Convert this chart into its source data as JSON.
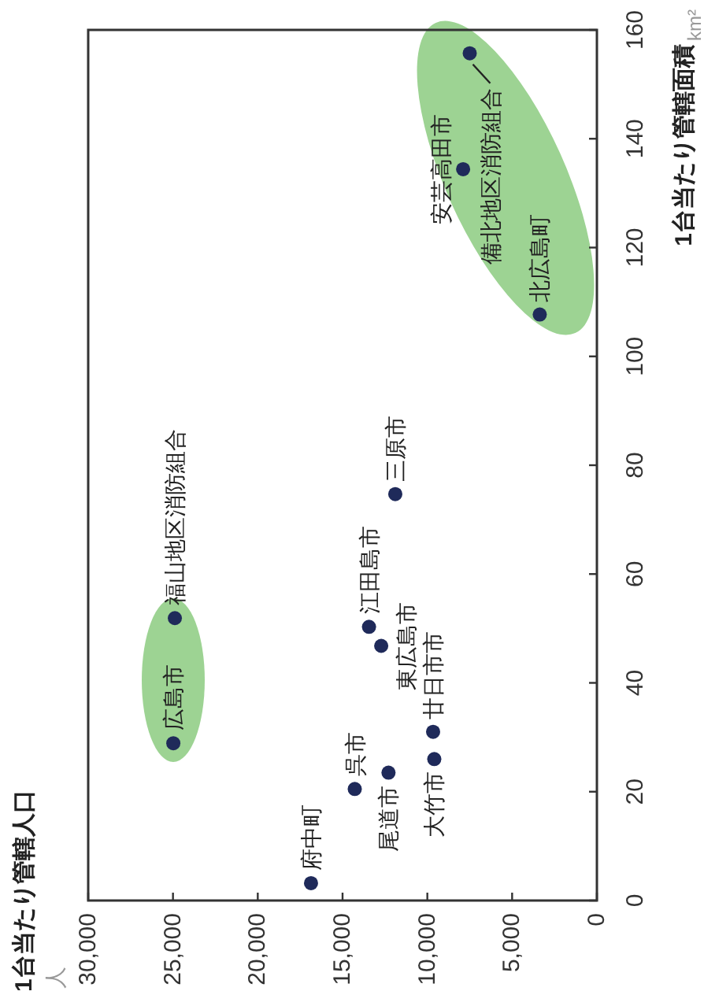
{
  "chart_data": {
    "type": "scatter",
    "ylabel": "1台当たり管轄面積",
    "ylim": [
      0,
      160
    ],
    "yticks": [
      0,
      20,
      40,
      60,
      80,
      100,
      120,
      140,
      160
    ],
    "xlim": [
      30000,
      0
    ],
    "xticks": [
      {
        "value": 30000,
        "label": "30,000"
      },
      {
        "value": 25000,
        "label": "25,000"
      },
      {
        "value": 20000,
        "label": "20,000"
      },
      {
        "value": 15000,
        "label": "15,000"
      },
      {
        "value": 10000,
        "label": "10,000"
      },
      {
        "value": 5000,
        "label": "5,000"
      },
      0
    ],
    "marker": "circle",
    "series": [
      {
        "color": "#1f2a5a",
        "x": [
          16860,
          14280,
          12290,
          9590,
          9660,
          24980,
          24890,
          12720,
          13440,
          11890,
          7890,
          7500,
          3370
        ],
        "values": [
          3.2,
          20.5,
          23.5,
          26.0,
          31.0,
          28.9,
          51.9,
          46.8,
          50.3,
          74.7,
          134.4,
          155.7,
          107.7
        ]
      }
    ],
    "annotations": [
      "km²",
      "1台当たり管轄人口",
      "人",
      {
        "text": "府中町",
        "x": 16860,
        "y": 3.2
      },
      {
        "text": "呉市",
        "x": 14280,
        "y": 20.5
      },
      {
        "text": "尾道市",
        "x": 12290,
        "y": 23.5
      },
      {
        "text": "大竹市",
        "x": 9590,
        "y": 26.0
      },
      {
        "text": "廿日市市",
        "x": 9660,
        "y": 31.0
      },
      {
        "text": "広島市",
        "x": 24980,
        "y": 28.9
      },
      {
        "text": "福山地区消防組合",
        "x": 24890,
        "y": 51.9
      },
      {
        "text": "東広島市",
        "x": 12720,
        "y": 46.8
      },
      {
        "text": "江田島市",
        "x": 13440,
        "y": 50.3
      },
      {
        "text": "三原市",
        "x": 11890,
        "y": 74.7
      },
      {
        "text": "安芸高田市",
        "x": 7890,
        "y": 134.4
      },
      {
        "text": "備北地区消防組合",
        "x": 7500,
        "y": 155.7
      },
      {
        "text": "北広島町",
        "x": 3370,
        "y": 107.7
      }
    ]
  }
}
